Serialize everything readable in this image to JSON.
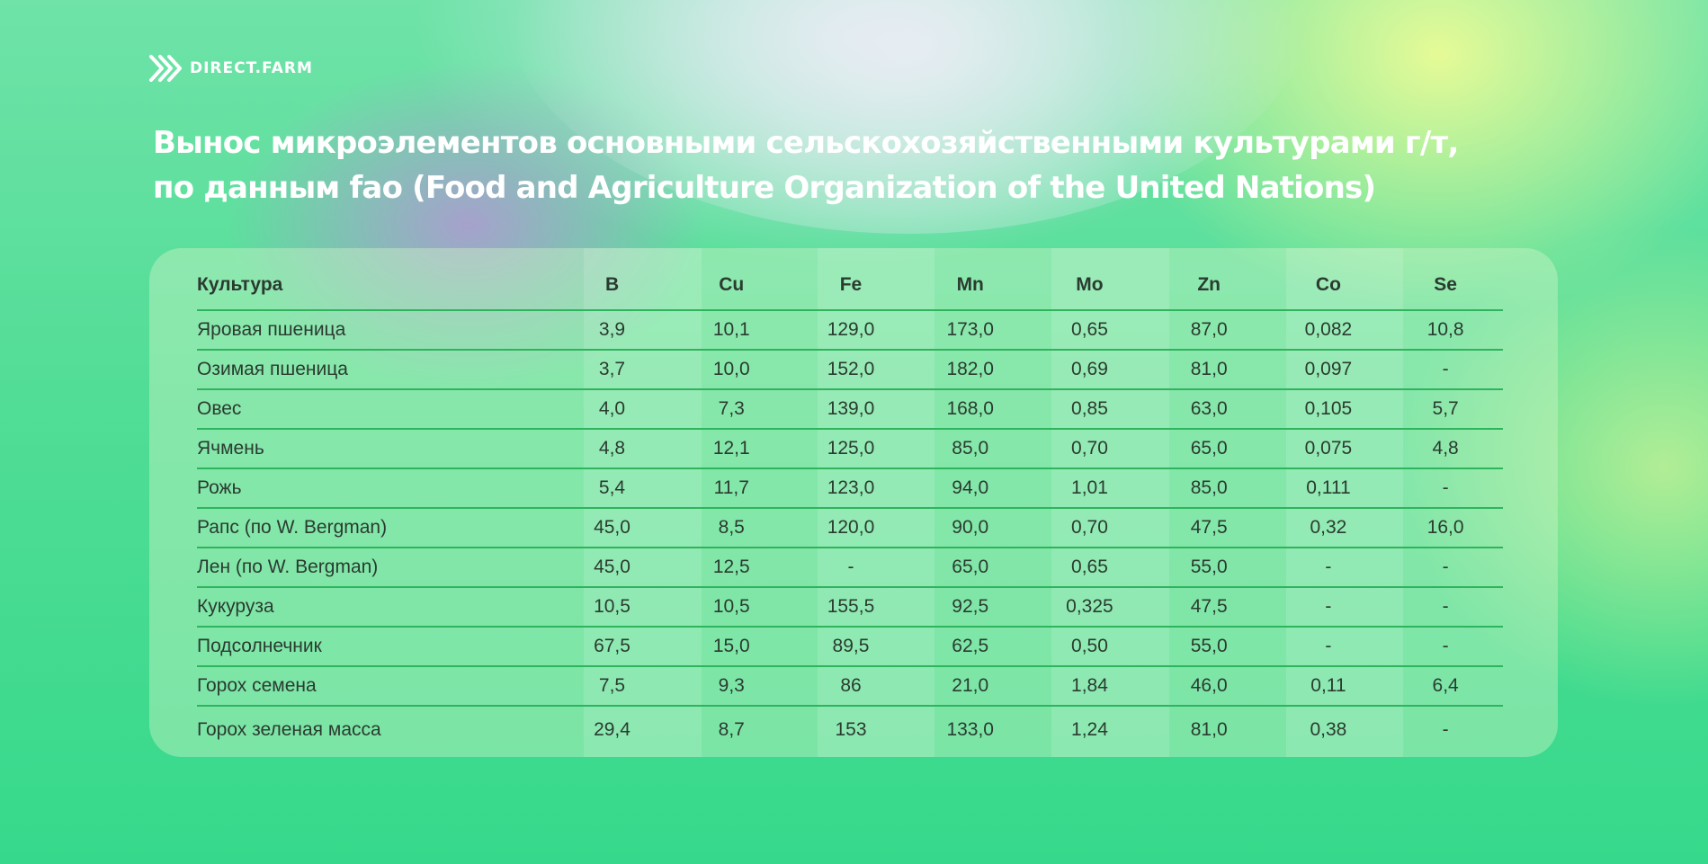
{
  "brand": {
    "logo_icon": "chevrons-right-icon",
    "name": "DIRECT.FARM",
    "accent_color": "#ffffff"
  },
  "title": {
    "line1": "Вынос микроэлементов основными сельскохозяйственными культурами г/т,",
    "line2": "по данным fao (Food and Agriculture Organization of the United Nations)"
  },
  "table": {
    "headers": [
      "Культура",
      "B",
      "Cu",
      "Fe",
      "Mn",
      "Mo",
      "Zn",
      "Co",
      "Se"
    ],
    "rows": [
      [
        "Яровая пшеница",
        "3,9",
        "10,1",
        "129,0",
        "173,0",
        "0,65",
        "87,0",
        "0,082",
        "10,8"
      ],
      [
        "Озимая пшеница",
        "3,7",
        "10,0",
        "152,0",
        "182,0",
        "0,69",
        "81,0",
        "0,097",
        "-"
      ],
      [
        "Овес",
        "4,0",
        "7,3",
        "139,0",
        "168,0",
        "0,85",
        "63,0",
        "0,105",
        "5,7"
      ],
      [
        "Ячмень",
        "4,8",
        "12,1",
        "125,0",
        "85,0",
        "0,70",
        "65,0",
        "0,075",
        "4,8"
      ],
      [
        "Рожь",
        "5,4",
        "11,7",
        "123,0",
        "94,0",
        "1,01",
        "85,0",
        "0,111",
        "-"
      ],
      [
        "Рапс (по W. Bergman)",
        "45,0",
        "8,5",
        "120,0",
        "90,0",
        "0,70",
        "47,5",
        "0,32",
        "16,0"
      ],
      [
        "Лен (по W. Bergman)",
        "45,0",
        "12,5",
        "-",
        "65,0",
        "0,65",
        "55,0",
        "-",
        "-"
      ],
      [
        "Кукуруза",
        "10,5",
        "10,5",
        "155,5",
        "92,5",
        "0,325",
        "47,5",
        "-",
        "-"
      ],
      [
        "Подсолнечник",
        "67,5",
        "15,0",
        "89,5",
        "62,5",
        "0,50",
        "55,0",
        "-",
        "-"
      ],
      [
        "Горох семена",
        "7,5",
        "9,3",
        "86",
        "21,0",
        "1,84",
        "46,0",
        "0,11",
        "6,4"
      ],
      [
        "Горох зеленая масса",
        "29,4",
        "8,7",
        "153",
        "133,0",
        "1,24",
        "81,0",
        "0,38",
        "-"
      ]
    ]
  }
}
